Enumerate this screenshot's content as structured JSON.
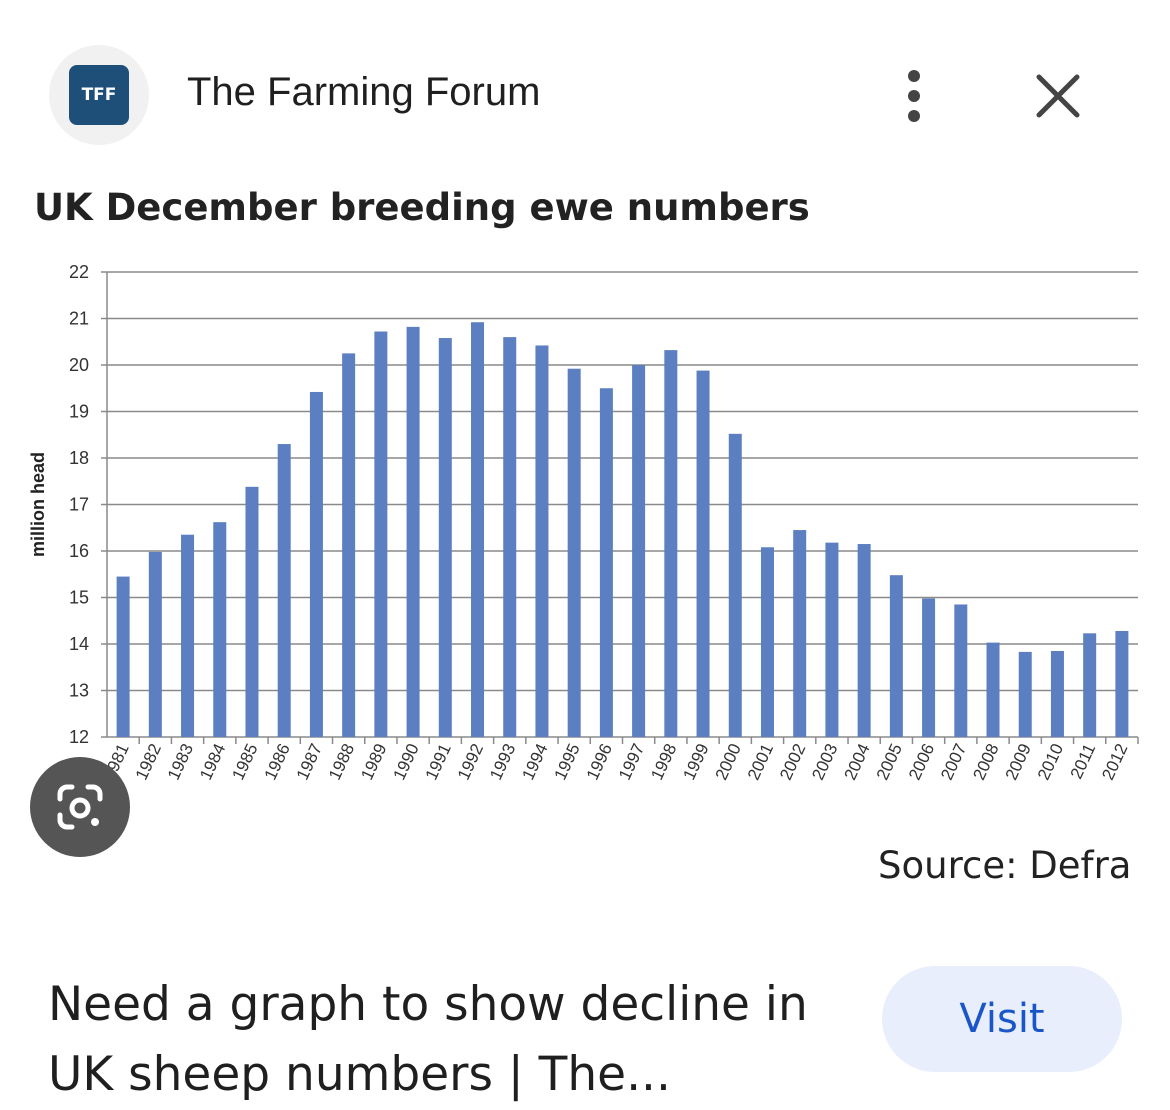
{
  "header": {
    "logo_text": "TFF",
    "site_name": "The Farming Forum",
    "more_icon": "more-vert-icon",
    "close_icon": "close-icon"
  },
  "colors": {
    "bar": "#5b7fc0",
    "logo_bg": "#1e4f78",
    "visit_bg": "#e8eefb",
    "visit_text": "#1a56c8"
  },
  "chart_data": {
    "type": "bar",
    "title": "UK December breeding ewe numbers",
    "ylabel": "million head",
    "xlabel": "",
    "ylim": [
      12,
      22
    ],
    "yticks": [
      12,
      13,
      14,
      15,
      16,
      17,
      18,
      19,
      20,
      21,
      22
    ],
    "grid": true,
    "categories": [
      "1981",
      "1982",
      "1983",
      "1984",
      "1985",
      "1986",
      "1987",
      "1988",
      "1989",
      "1990",
      "1991",
      "1992",
      "1993",
      "1994",
      "1995",
      "1996",
      "1997",
      "1998",
      "1999",
      "2000",
      "2001",
      "2002",
      "2003",
      "2004",
      "2005",
      "2006",
      "2007",
      "2008",
      "2009",
      "2010",
      "2011",
      "2012"
    ],
    "values": [
      15.45,
      15.98,
      16.35,
      16.62,
      17.38,
      18.3,
      19.42,
      20.25,
      20.72,
      20.82,
      20.58,
      20.92,
      20.6,
      20.42,
      19.92,
      19.5,
      20.0,
      20.32,
      19.88,
      18.52,
      16.08,
      16.45,
      16.18,
      16.15,
      15.48,
      14.98,
      14.85,
      14.03,
      13.83,
      13.85,
      14.23,
      14.28
    ],
    "source": "Source: Defra"
  },
  "lens": {
    "icon": "google-lens-icon"
  },
  "result": {
    "caption": "Need a graph to show decline in UK sheep numbers | The...",
    "visit_label": "Visit"
  }
}
